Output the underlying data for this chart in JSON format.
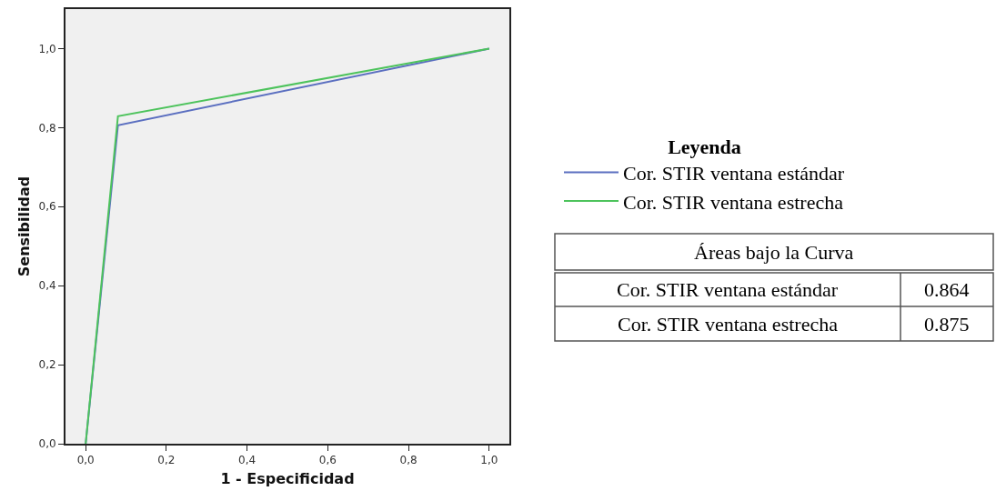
{
  "chart_data": {
    "type": "line",
    "xlabel": "1 - Especificidad",
    "ylabel": "Sensibilidad",
    "legend_title": "Leyenda",
    "series": [
      {
        "name": "Cor. STIR ventana estándar",
        "color": "#5b6fc0",
        "x": [
          0,
          0.08,
          1
        ],
        "values": [
          0,
          0.806,
          1
        ]
      },
      {
        "name": "Cor. STIR ventana estrecha",
        "color": "#4dc35c",
        "x": [
          0,
          0.08,
          1
        ],
        "values": [
          0,
          0.829,
          1
        ]
      }
    ],
    "xlim": [
      -0.05,
      1.05
    ],
    "ylim": [
      0,
      1.1
    ],
    "xticks": [
      {
        "value": 0,
        "label": "0,0"
      },
      {
        "value": 0.2,
        "label": "0,2"
      },
      {
        "value": 0.4,
        "label": "0,4"
      },
      {
        "value": 0.6,
        "label": "0,6"
      },
      {
        "value": 0.8,
        "label": "0,8"
      },
      {
        "value": 1,
        "label": "1,0"
      }
    ],
    "yticks": [
      {
        "value": 0,
        "label": "0,0"
      },
      {
        "value": 0.2,
        "label": "0,2"
      },
      {
        "value": 0.4,
        "label": "0,4"
      },
      {
        "value": 0.6,
        "label": "0,6"
      },
      {
        "value": 0.8,
        "label": "0,8"
      },
      {
        "value": 1,
        "label": "1,0"
      }
    ],
    "grid": false,
    "legend": "right",
    "line_style": "solid",
    "marker": "none",
    "annotations": [
      "Áreas bajo la Curva",
      "Cor. STIR ventana estándar",
      "0.864",
      "Cor. STIR ventana estrecha",
      "0.875"
    ]
  }
}
